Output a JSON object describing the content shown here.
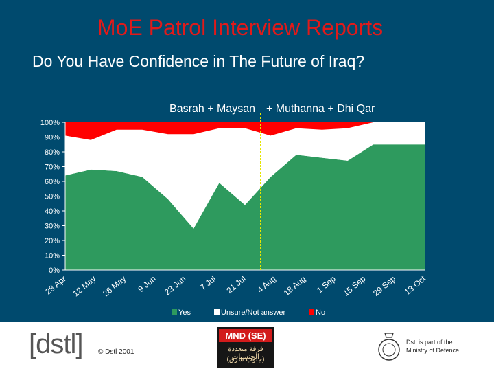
{
  "slide": {
    "title": "MoE Patrol Interview Reports",
    "subtitle": "Do You Have Confidence in The Future of Iraq?",
    "background": "#004a6e"
  },
  "chart_data": {
    "type": "area",
    "stacked": true,
    "stacked_percent": true,
    "region_labels": [
      "Basrah + Maysan",
      "+ Muthanna + Dhi Qar"
    ],
    "divider_after_x": "28 Jul",
    "x_tick_labels": [
      "28 Apr",
      "12 May",
      "26 May",
      "9 Jun",
      "23 Jun",
      "7 Jul",
      "21 Jul",
      "4 Aug",
      "18 Aug",
      "1 Sep",
      "15 Sep",
      "29 Sep",
      "13 Oct"
    ],
    "y_tick_labels": [
      "0%",
      "10%",
      "20%",
      "30%",
      "40%",
      "50%",
      "60%",
      "70%",
      "80%",
      "90%",
      "100%"
    ],
    "ylim": [
      0,
      100
    ],
    "x": [
      "28 Apr",
      "12 May",
      "26 May",
      "9 Jun",
      "16 Jun",
      "23 Jun",
      "30 Jun",
      "7 Jul",
      "21 Jul",
      "4 Aug",
      "18 Aug",
      "1 Sep",
      "15 Sep",
      "29 Sep",
      "13 Oct"
    ],
    "series": [
      {
        "name": "Yes",
        "color": "#2e9a5e",
        "values": [
          64,
          68,
          67,
          63,
          48,
          28,
          59,
          44,
          63,
          78,
          76,
          74,
          85,
          85,
          85
        ]
      },
      {
        "name": "Unsure/Not answer",
        "color": "#ffffff",
        "values": [
          27,
          20,
          28,
          32,
          44,
          64,
          37,
          52,
          28,
          18,
          19,
          22,
          15,
          15,
          15
        ]
      },
      {
        "name": "No",
        "color": "#ff0000",
        "values": [
          9,
          12,
          5,
          5,
          8,
          8,
          4,
          4,
          9,
          4,
          5,
          4,
          0,
          0,
          0
        ]
      }
    ],
    "legend_position": "bottom",
    "grid": false
  },
  "footer": {
    "dstl_logo": "[dstl]",
    "copyright": "© Dstl 2001",
    "mnd_title": "MND (SE)",
    "mnd_arabic_1": "فرقة متعددة الجنسيات",
    "mnd_arabic_2": "(جنوب شرق)",
    "mod_line1": "Dstl is part of the",
    "mod_line2": "Ministry of Defence"
  }
}
